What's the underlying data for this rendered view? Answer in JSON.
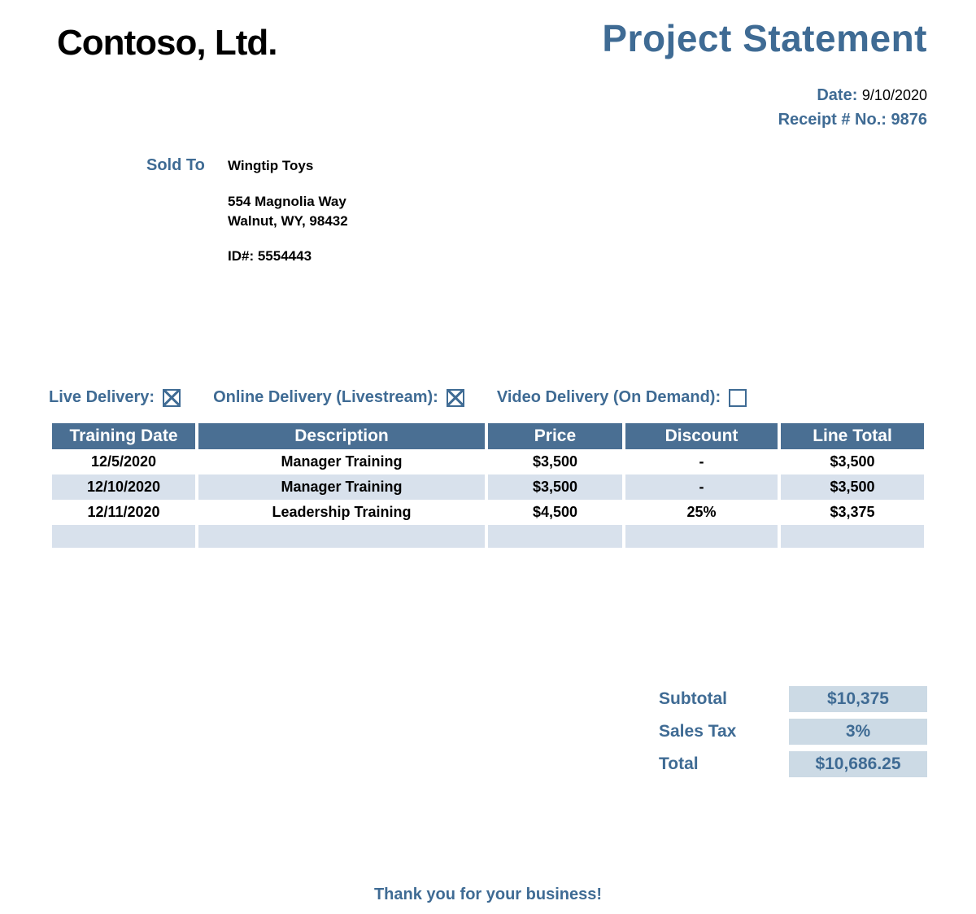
{
  "colors": {
    "accent": "#3f6b94",
    "table_header_bg": "#4a6f93",
    "table_alt_bg": "#d8e1ec",
    "totals_value_bg": "#ccdae5",
    "text_black": "#000000",
    "background": "#ffffff"
  },
  "header": {
    "company_name": "Contoso, Ltd.",
    "statement_title": "Project Statement"
  },
  "meta": {
    "date_label": "Date:",
    "date_value": "9/10/2020",
    "receipt_label": "Receipt # No.:",
    "receipt_value": "9876"
  },
  "sold_to": {
    "label": "Sold To",
    "name": "Wingtip Toys",
    "address_line1": "554 Magnolia Way",
    "address_line2": "Walnut, WY, 98432",
    "id_line": "ID#: 5554443"
  },
  "delivery": {
    "live": {
      "label": "Live Delivery:",
      "checked": true
    },
    "online": {
      "label": "Online Delivery (Livestream):",
      "checked": true
    },
    "video": {
      "label": "Video Delivery (On Demand):",
      "checked": false
    }
  },
  "table": {
    "columns": [
      "Training Date",
      "Description",
      "Price",
      "Discount",
      "Line Total"
    ],
    "column_widths_pct": [
      16,
      32,
      15,
      17,
      16
    ],
    "rows": [
      {
        "date": "12/5/2020",
        "description": "Manager Training",
        "price": "$3,500",
        "discount": "-",
        "line_total": "$3,500",
        "alt": false
      },
      {
        "date": "12/10/2020",
        "description": "Manager Training",
        "price": "$3,500",
        "discount": "-",
        "line_total": "$3,500",
        "alt": true
      },
      {
        "date": "12/11/2020",
        "description": "Leadership Training",
        "price": "$4,500",
        "discount": "25%",
        "line_total": "$3,375",
        "alt": false
      }
    ]
  },
  "totals": {
    "subtotal_label": "Subtotal",
    "subtotal_value": "$10,375",
    "tax_label": "Sales Tax",
    "tax_value": "3%",
    "total_label": "Total",
    "total_value": "$10,686.25"
  },
  "footer": {
    "thank_you": "Thank you for your business!"
  }
}
